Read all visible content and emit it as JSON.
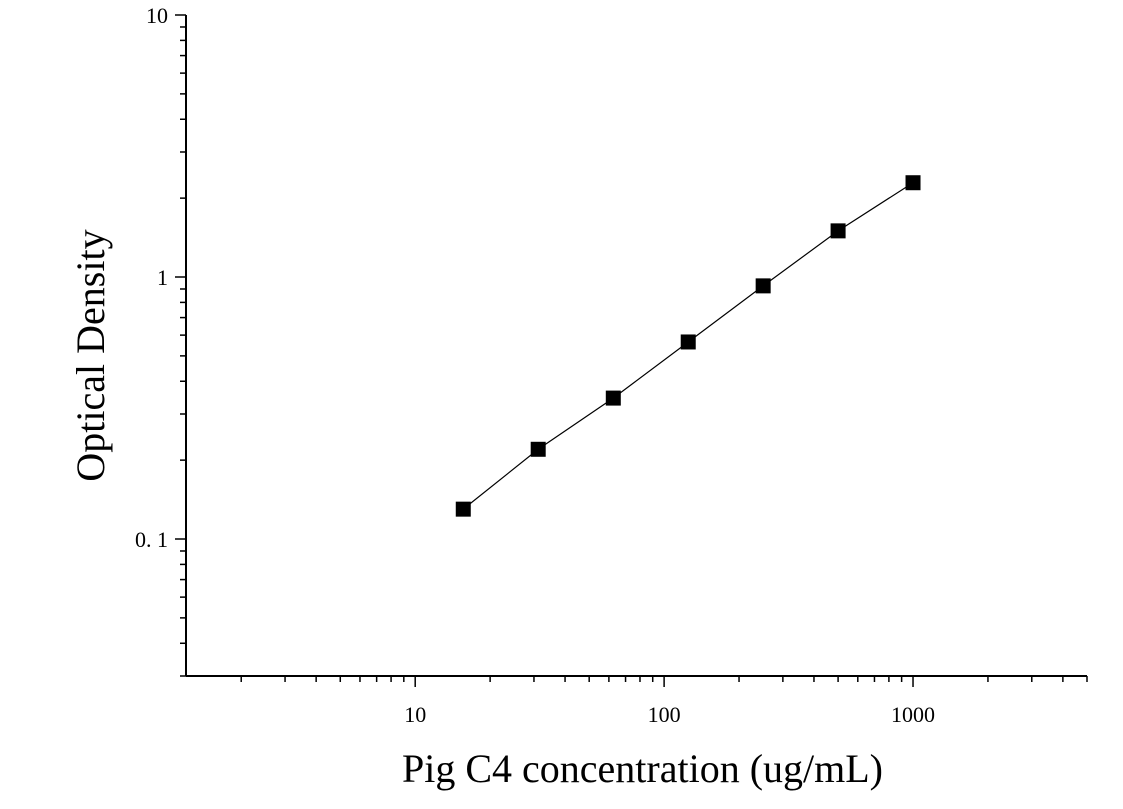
{
  "chart_data": {
    "type": "scatter",
    "title": "",
    "xlabel": "Pig C4 concentration (ug/mL)",
    "ylabel": "Optical Density",
    "x_scale": "log",
    "y_scale": "log",
    "xlim": [
      1.2,
      5000
    ],
    "ylim": [
      0.03,
      10
    ],
    "x_ticks": [
      {
        "value": 10,
        "label": "10"
      },
      {
        "value": 100,
        "label": "100"
      },
      {
        "value": 1000,
        "label": "1000"
      }
    ],
    "y_ticks": [
      {
        "value": 0.1,
        "label": "0. 1"
      },
      {
        "value": 1,
        "label": "1"
      },
      {
        "value": 10,
        "label": "10"
      }
    ],
    "grid": false,
    "legend": "none",
    "series": [
      {
        "marker": "square",
        "color": "#000000",
        "fit_line": true,
        "x": [
          15.6,
          31.2,
          62.5,
          125,
          250,
          500,
          1000
        ],
        "y": [
          0.13,
          0.22,
          0.345,
          0.565,
          0.925,
          1.5,
          2.29
        ]
      }
    ]
  }
}
